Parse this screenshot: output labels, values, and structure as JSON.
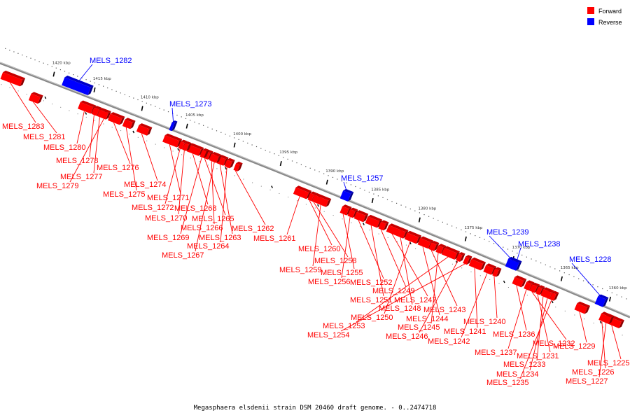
{
  "caption": "Megasphaera elsdenii strain DSM 20460 draft genome. - 0..2474718",
  "legend": [
    {
      "label": "Forward",
      "color": "#ff0000"
    },
    {
      "label": "Reverse",
      "color": "#0000ff"
    }
  ],
  "colors": {
    "forward": "#ff0000",
    "reverse": "#0000ff",
    "backbone": "#888888"
  },
  "ticks": [
    "1420 kbp",
    "1415 kbp",
    "1410 kbp",
    "1405 kbp",
    "1400 kbp",
    "1395 kbp",
    "1390 kbp",
    "1385 kbp",
    "1380 kbp",
    "1375 kbp",
    "1370 kbp",
    "1365 kbp",
    "1360 kbp"
  ],
  "genes": [
    {
      "name": "MELS_1283",
      "strand": "forward"
    },
    {
      "name": "MELS_1282",
      "strand": "reverse"
    },
    {
      "name": "MELS_1281",
      "strand": "forward"
    },
    {
      "name": "MELS_1280",
      "strand": "forward"
    },
    {
      "name": "MELS_1278",
      "strand": "forward"
    },
    {
      "name": "MELS_1277",
      "strand": "forward"
    },
    {
      "name": "MELS_1279",
      "strand": "forward"
    },
    {
      "name": "MELS_1276",
      "strand": "forward"
    },
    {
      "name": "MELS_1275",
      "strand": "forward"
    },
    {
      "name": "MELS_1274",
      "strand": "forward"
    },
    {
      "name": "MELS_1273",
      "strand": "reverse"
    },
    {
      "name": "MELS_1271",
      "strand": "forward"
    },
    {
      "name": "MELS_1272",
      "strand": "forward"
    },
    {
      "name": "MELS_1268",
      "strand": "forward"
    },
    {
      "name": "MELS_1270",
      "strand": "forward"
    },
    {
      "name": "MELS_1265",
      "strand": "forward"
    },
    {
      "name": "MELS_1266",
      "strand": "forward"
    },
    {
      "name": "MELS_1262",
      "strand": "forward"
    },
    {
      "name": "MELS_1269",
      "strand": "forward"
    },
    {
      "name": "MELS_1263",
      "strand": "forward"
    },
    {
      "name": "MELS_1264",
      "strand": "forward"
    },
    {
      "name": "MELS_1267",
      "strand": "forward"
    },
    {
      "name": "MELS_1261",
      "strand": "forward"
    },
    {
      "name": "MELS_1260",
      "strand": "forward"
    },
    {
      "name": "MELS_1258",
      "strand": "forward"
    },
    {
      "name": "MELS_1259",
      "strand": "forward"
    },
    {
      "name": "MELS_1257",
      "strand": "reverse"
    },
    {
      "name": "MELS_1255",
      "strand": "forward"
    },
    {
      "name": "MELS_1256",
      "strand": "forward"
    },
    {
      "name": "MELS_1252",
      "strand": "forward"
    },
    {
      "name": "MELS_1251",
      "strand": "forward"
    },
    {
      "name": "MELS_1249",
      "strand": "forward"
    },
    {
      "name": "MELS_1247",
      "strand": "forward"
    },
    {
      "name": "MELS_1248",
      "strand": "forward"
    },
    {
      "name": "MELS_1250",
      "strand": "forward"
    },
    {
      "name": "MELS_1244",
      "strand": "forward"
    },
    {
      "name": "MELS_1243",
      "strand": "forward"
    },
    {
      "name": "MELS_1245",
      "strand": "forward"
    },
    {
      "name": "MELS_1253",
      "strand": "forward"
    },
    {
      "name": "MELS_1246",
      "strand": "forward"
    },
    {
      "name": "MELS_1254",
      "strand": "forward"
    },
    {
      "name": "MELS_1241",
      "strand": "forward"
    },
    {
      "name": "MELS_1242",
      "strand": "forward"
    },
    {
      "name": "MELS_1240",
      "strand": "forward"
    },
    {
      "name": "MELS_1239",
      "strand": "reverse"
    },
    {
      "name": "MELS_1238",
      "strand": "reverse"
    },
    {
      "name": "MELS_1236",
      "strand": "forward"
    },
    {
      "name": "MELS_1237",
      "strand": "forward"
    },
    {
      "name": "MELS_1232",
      "strand": "forward"
    },
    {
      "name": "MELS_1231",
      "strand": "forward"
    },
    {
      "name": "MELS_1233",
      "strand": "forward"
    },
    {
      "name": "MELS_1234",
      "strand": "forward"
    },
    {
      "name": "MELS_1235",
      "strand": "forward"
    },
    {
      "name": "MELS_1228",
      "strand": "reverse"
    },
    {
      "name": "MELS_1229",
      "strand": "forward"
    },
    {
      "name": "MELS_1225",
      "strand": "forward"
    },
    {
      "name": "MELS_1226",
      "strand": "forward"
    },
    {
      "name": "MELS_1227",
      "strand": "forward"
    }
  ]
}
